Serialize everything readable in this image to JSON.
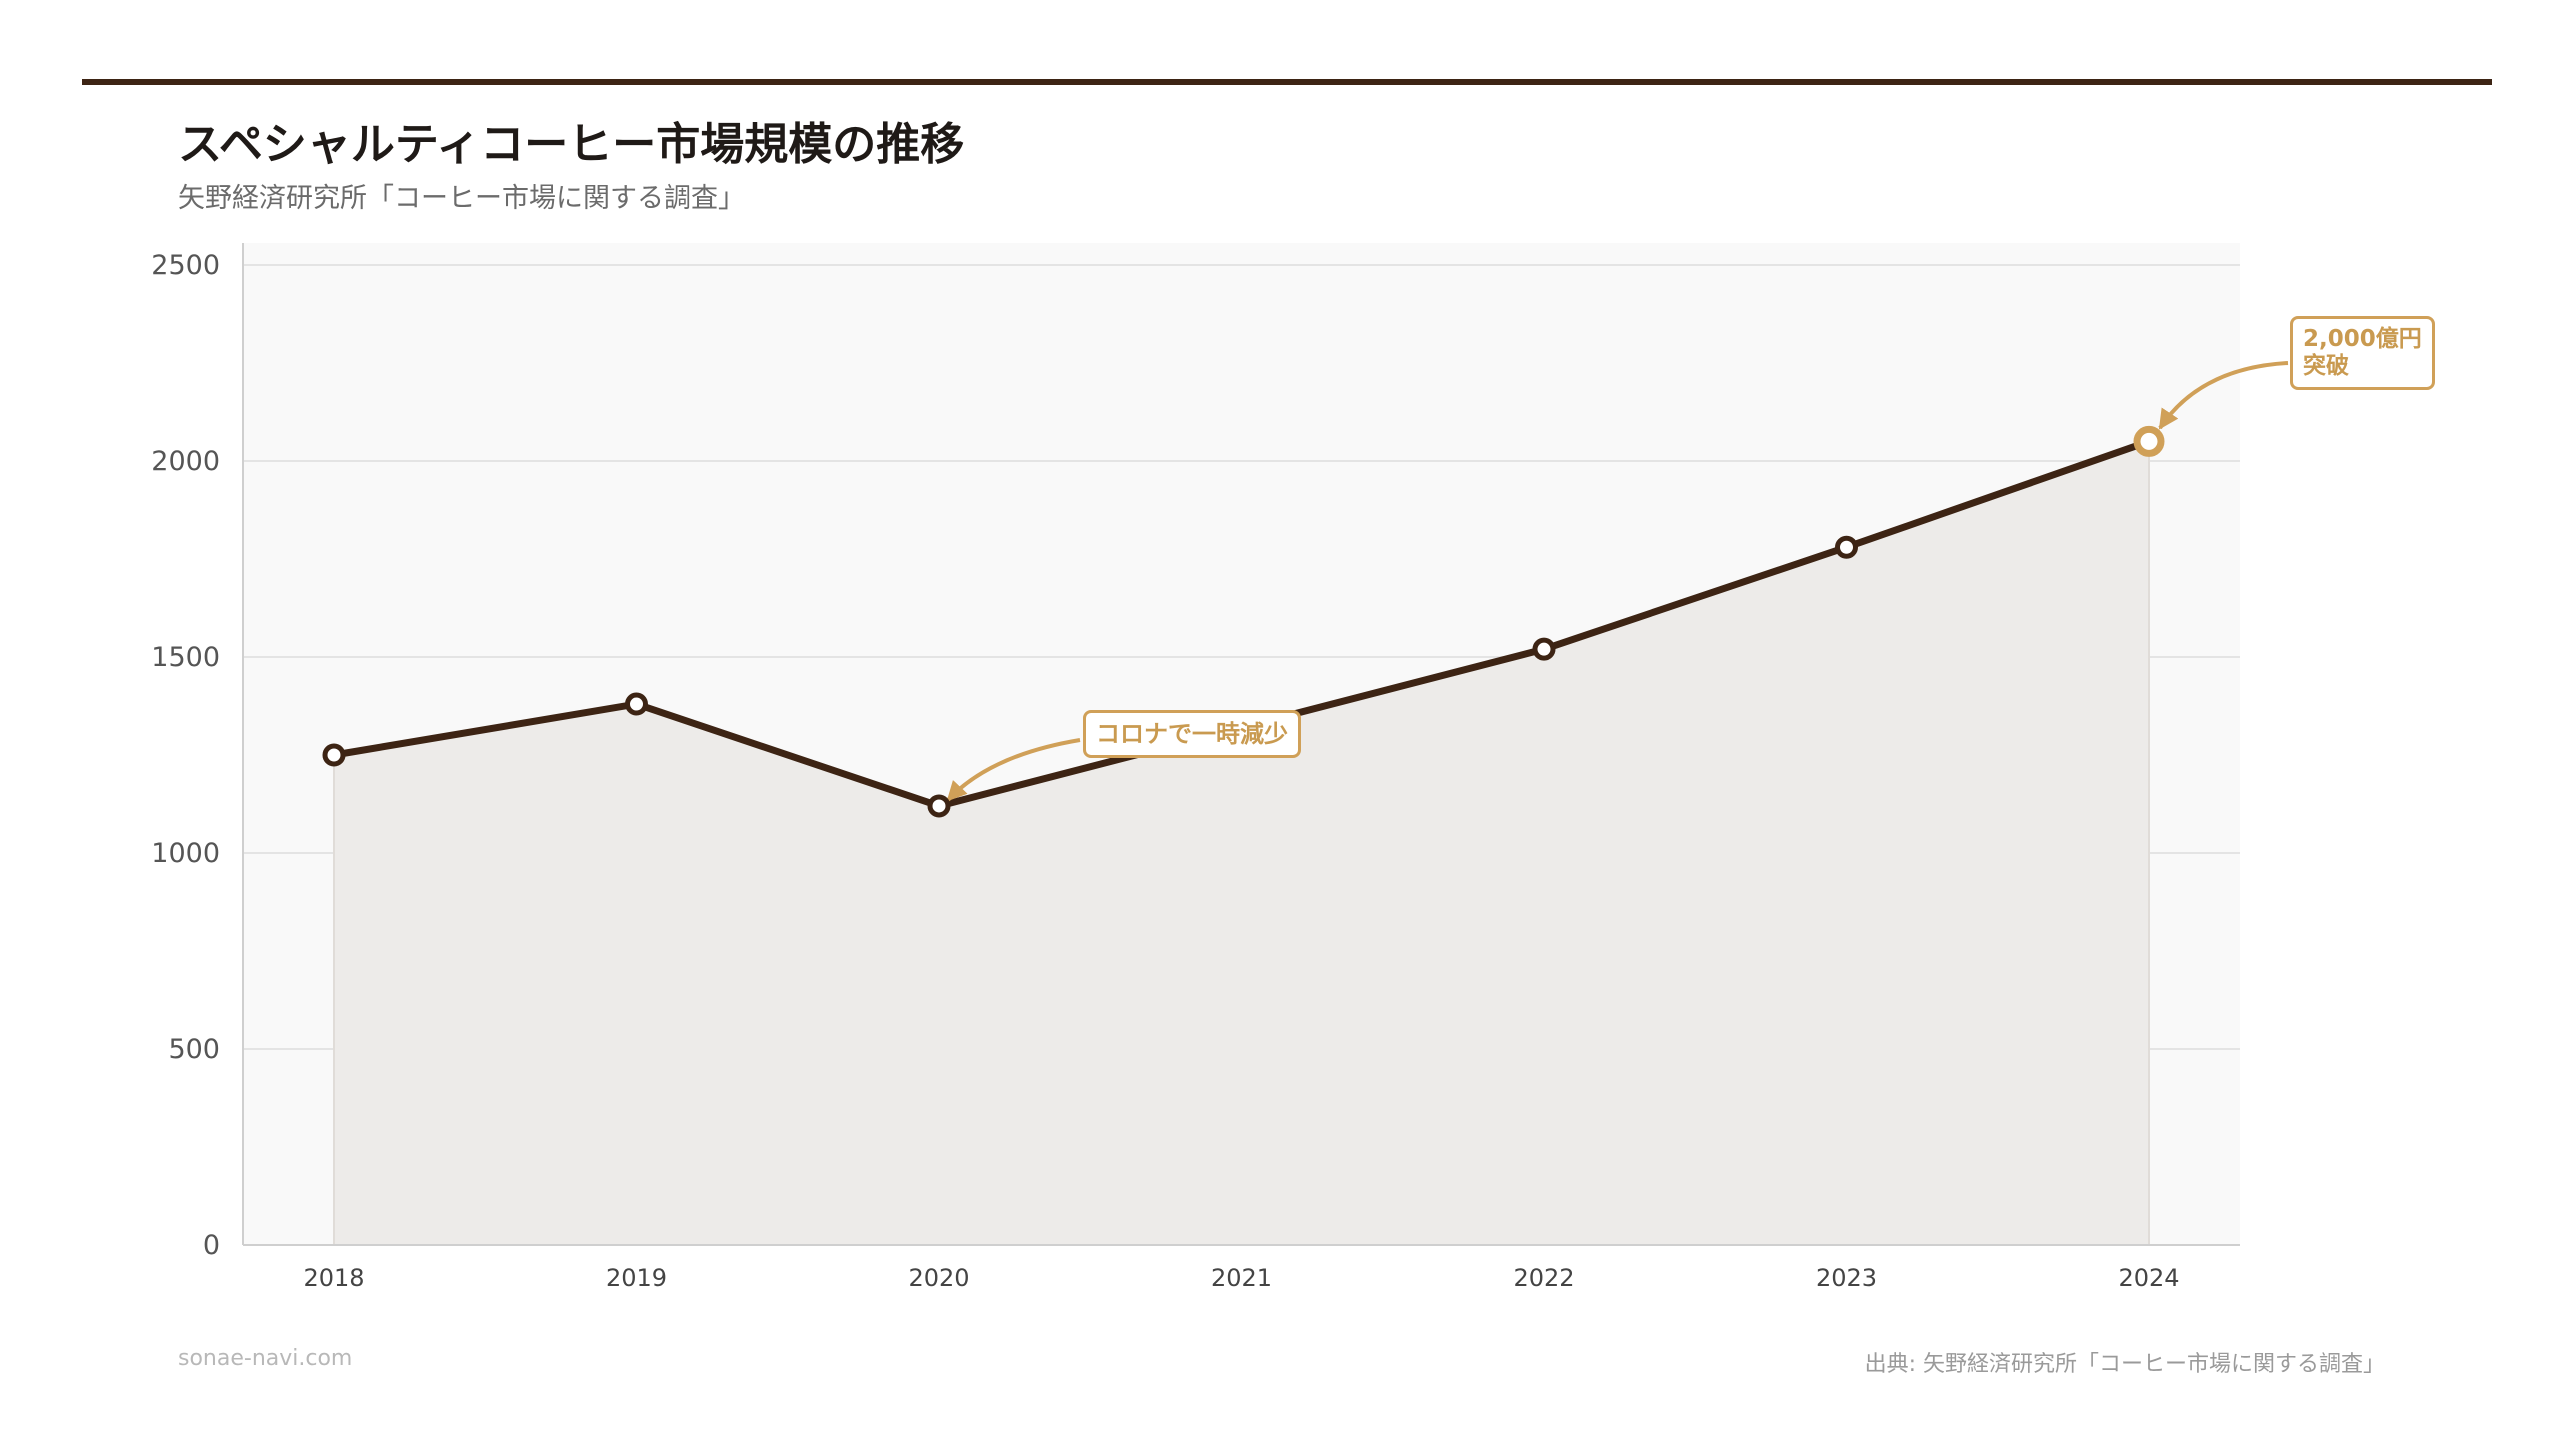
{
  "title": "スペシャルティコーヒー市場規模の推移",
  "subtitle": "矢野経済研究所「コーヒー市場に関する調査」",
  "footer": {
    "site": "sonae-navi.com",
    "source": "出典: 矢野経済研究所「コーヒー市場に関する調査」"
  },
  "colors": {
    "line": "#3d2414",
    "accent": "#d0a058",
    "fill": "#edebe9",
    "plot_bg": "#f9f9f9",
    "grid": "#e4e4e4"
  },
  "chart_data": {
    "type": "area",
    "x": [
      "2018",
      "2019",
      "2020",
      "2021",
      "2022",
      "2023",
      "2024"
    ],
    "series": [
      {
        "values": [
          1250,
          1380,
          1120,
          null,
          1520,
          1780,
          2050
        ]
      }
    ],
    "ylim": [
      0,
      2500
    ],
    "yticks": [
      0,
      500,
      1000,
      1500,
      2000,
      2500
    ],
    "grid": true,
    "legend": "none",
    "annotations": [
      {
        "index": 2,
        "text": "コロナで一時減少"
      },
      {
        "index": 6,
        "text_lines": [
          "2,000億円",
          "突破"
        ],
        "highlight": true
      }
    ]
  }
}
